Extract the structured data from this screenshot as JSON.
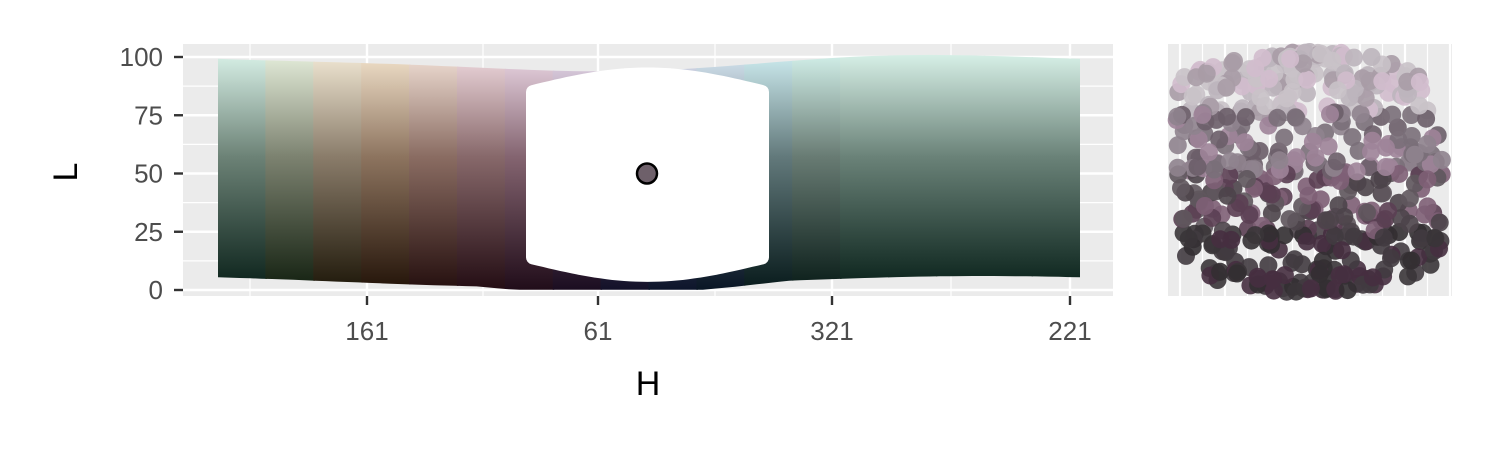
{
  "chart_data": [
    {
      "type": "scatter",
      "panel": "main",
      "xlabel": "H",
      "ylabel": "L",
      "ylim": [
        0,
        100
      ],
      "y_ticks": [
        0,
        25,
        50,
        75,
        100
      ],
      "y_tick_labels": [
        "0",
        "25",
        "50",
        "75",
        "100"
      ],
      "x_ticks": [
        161,
        61,
        321,
        221
      ],
      "x_tick_labels": [
        "161",
        "61",
        "321",
        "221"
      ],
      "x_range_hue_order": "rotated hue axis from about 200 down through 0 to about 221 (circular)",
      "grid": true,
      "background": "#ebebeb",
      "series": [
        {
          "role": "available-colour-gamut",
          "hues": [
            200,
            181,
            161,
            141,
            121,
            101,
            81,
            61,
            41,
            21,
            1,
            341,
            321,
            301,
            281,
            261,
            241,
            221
          ],
          "colours_light": [
            "#e6fff6",
            "#f2fbe8",
            "#fff6e2",
            "#fff0d9",
            "#ffefe5",
            "#fde8ee",
            "#f8e6f4",
            "#f2e8fa",
            "#efecff",
            "#e9f0ff",
            "#e3f5ff",
            "#dcfbff",
            "#e0fff9",
            "#e6fff6",
            "#e6fff6",
            "#e6fff6",
            "#e6fff6",
            "#e6fff6"
          ],
          "colours_mid": [
            "#6c8276",
            "#7c8270",
            "#8a7c6a",
            "#8d745f",
            "#8a6c62",
            "#87686a",
            "#846470",
            "#806476",
            "#78667e",
            "#6e6c82",
            "#687380",
            "#62797b",
            "#687b73",
            "#6a8278",
            "#6a8278",
            "#6a8278",
            "#6a8278",
            "#6a8278"
          ],
          "colours_dark": [
            "#021912",
            "#0a1808",
            "#161002",
            "#1b0c02",
            "#1d0808",
            "#1c060d",
            "#190613",
            "#13061a",
            "#0b0a22",
            "#050e24",
            "#020f1e",
            "#011314",
            "#021511",
            "#011912",
            "#011912",
            "#011912",
            "#011912",
            "#011912"
          ]
        },
        {
          "role": "selected-region",
          "colour": "#ffffff"
        },
        {
          "role": "selected-colour",
          "L": 50,
          "fill": "#6e606a",
          "stroke": "#000000"
        }
      ]
    },
    {
      "type": "scatter",
      "panel": "sample-swatches",
      "xlabel": "",
      "ylabel": "",
      "grid": true,
      "background": "#ebebeb",
      "colours": [
        "#c9c2c8",
        "#bdb5bd",
        "#d2bdcd",
        "#a89ca6",
        "#8f838e",
        "#9f8499",
        "#7a6f79",
        "#6c5e69",
        "#7e5f75",
        "#5f565d",
        "#4c444a",
        "#5b3f53",
        "#413b40",
        "#3a3539",
        "#332f32",
        "#462f40"
      ]
    }
  ]
}
